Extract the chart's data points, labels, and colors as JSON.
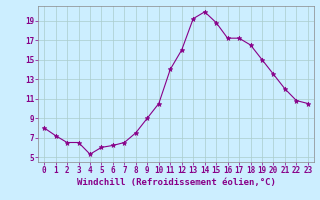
{
  "hours": [
    0,
    1,
    2,
    3,
    4,
    5,
    6,
    7,
    8,
    9,
    10,
    11,
    12,
    13,
    14,
    15,
    16,
    17,
    18,
    19,
    20,
    21,
    22,
    23
  ],
  "values": [
    8.0,
    7.2,
    6.5,
    6.5,
    5.3,
    6.0,
    6.2,
    6.5,
    7.5,
    9.0,
    10.5,
    14.0,
    16.0,
    19.2,
    19.9,
    18.8,
    17.2,
    17.2,
    16.5,
    15.0,
    13.5,
    12.0,
    10.8,
    10.5
  ],
  "line_color": "#880088",
  "marker": "*",
  "marker_size": 3.5,
  "bg_color": "#cceeff",
  "grid_color": "#aacccc",
  "xlabel": "Windchill (Refroidissement éolien,°C)",
  "ylabel": "",
  "xlim": [
    -0.5,
    23.5
  ],
  "ylim": [
    4.5,
    20.5
  ],
  "yticks": [
    5,
    7,
    9,
    11,
    13,
    15,
    17,
    19
  ],
  "xticks": [
    0,
    1,
    2,
    3,
    4,
    5,
    6,
    7,
    8,
    9,
    10,
    11,
    12,
    13,
    14,
    15,
    16,
    17,
    18,
    19,
    20,
    21,
    22,
    23
  ],
  "tick_fontsize": 5.5,
  "xlabel_fontsize": 6.5
}
